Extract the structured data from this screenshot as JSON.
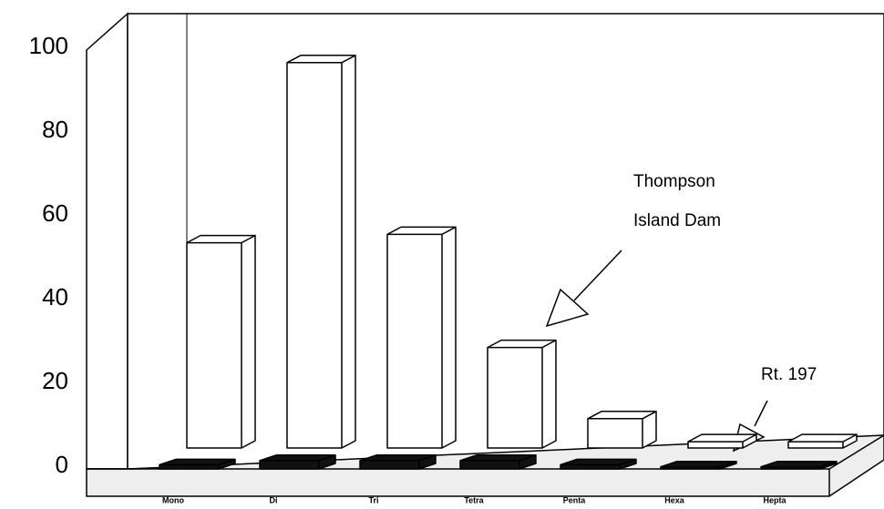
{
  "chart_data": {
    "type": "bar3d",
    "categories": [
      "Mono",
      "Di",
      "Tri",
      "Tetra",
      "Penta",
      "Hexa",
      "Hepta"
    ],
    "series": [
      {
        "color": "#ffffff",
        "values": [
          49,
          92,
          51,
          24,
          7,
          1.5,
          1.5
        ]
      },
      {
        "color": "#111111",
        "values": [
          1,
          2,
          2,
          2,
          1,
          0.5,
          0.5
        ]
      }
    ],
    "ylim": [
      0,
      100
    ],
    "yticks": [
      0,
      20,
      40,
      60,
      80,
      100
    ],
    "annotations": [
      "Thompson",
      "Island Dam",
      "Rt. 197"
    ]
  }
}
